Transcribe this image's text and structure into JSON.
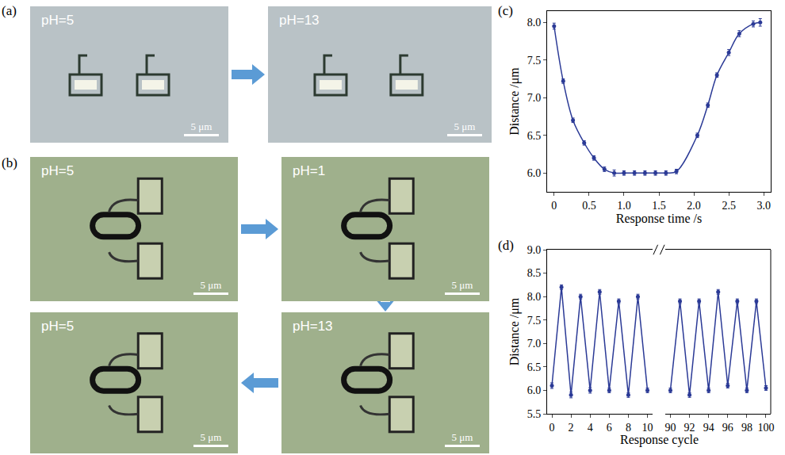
{
  "panels": [
    {
      "letter": "(a)",
      "images": [
        {
          "label": "pH=5",
          "scale": "5 μm"
        },
        {
          "label": "pH=13",
          "scale": "5 μm"
        }
      ]
    },
    {
      "letter": "(b)",
      "images": [
        {
          "label": "pH=5",
          "scale": "5 μm"
        },
        {
          "label": "pH=1",
          "scale": "5 μm"
        },
        {
          "label": "pH=5",
          "scale": "5 μm"
        },
        {
          "label": "pH=13",
          "scale": "5 μm"
        }
      ]
    }
  ],
  "chart_data": [
    {
      "letter": "(c)",
      "type": "line",
      "line_style": "solid",
      "marker": "circle",
      "color": "#2b3a96",
      "xlabel": "Response time /s",
      "ylabel": "Distance /μm",
      "x": [
        0,
        0.13,
        0.27,
        0.43,
        0.57,
        0.72,
        0.86,
        1.0,
        1.15,
        1.3,
        1.45,
        1.6,
        1.75,
        2.05,
        2.2,
        2.33,
        2.5,
        2.65,
        2.85,
        2.95
      ],
      "values": [
        7.95,
        7.22,
        6.7,
        6.4,
        6.2,
        6.05,
        6.0,
        6.0,
        6.0,
        6.0,
        6.0,
        6.0,
        6.02,
        6.5,
        6.9,
        7.3,
        7.6,
        7.85,
        7.98,
        8.0
      ],
      "errors": [
        0.04,
        0.03,
        0.03,
        0.03,
        0.03,
        0.03,
        0.04,
        0.03,
        0.03,
        0.03,
        0.03,
        0.03,
        0.03,
        0.03,
        0.03,
        0.03,
        0.04,
        0.04,
        0.04,
        0.05
      ],
      "xlim": [
        -0.1,
        3.1
      ],
      "ylim": [
        5.75,
        8.15
      ],
      "xticks": [
        0,
        0.5,
        {
          "value": 1,
          "label": "1.0"
        },
        1.5,
        {
          "value": 2,
          "label": "2.0"
        },
        2.5,
        {
          "value": 3,
          "label": "3.0"
        }
      ],
      "yticks": [
        {
          "value": 6,
          "label": "6.0"
        },
        6.5,
        {
          "value": 7,
          "label": "7.0"
        },
        7.5,
        {
          "value": 8,
          "label": "8.0"
        }
      ]
    },
    {
      "letter": "(d)",
      "type": "line",
      "line_style": "solid",
      "marker": "circle",
      "color": "#2b3a96",
      "xlabel": "Response cycle",
      "ylabel": "Distance /μm",
      "x": [
        0,
        1,
        2,
        3,
        4,
        5,
        6,
        7,
        8,
        9,
        10,
        90,
        91,
        92,
        93,
        94,
        95,
        96,
        97,
        98,
        99,
        100
      ],
      "values": [
        6.1,
        8.2,
        5.9,
        8.0,
        6.0,
        8.1,
        6.0,
        7.9,
        5.9,
        8.0,
        6.0,
        6.0,
        7.9,
        5.9,
        7.9,
        6.0,
        8.1,
        6.1,
        7.9,
        6.0,
        7.9,
        6.05
      ],
      "errors": [
        0.06,
        0.05,
        0.06,
        0.05,
        0.06,
        0.05,
        0.05,
        0.05,
        0.05,
        0.05,
        0.05,
        0.05,
        0.05,
        0.05,
        0.05,
        0.05,
        0.05,
        0.05,
        0.05,
        0.05,
        0.05,
        0.05
      ],
      "xlim": [
        [
          -0.5,
          10.5
        ],
        [
          89.5,
          100.5
        ]
      ],
      "xticks": [
        [
          0,
          2,
          4,
          6,
          8,
          10
        ],
        [
          90,
          92,
          94,
          96,
          98,
          100
        ]
      ],
      "ylim": [
        5.5,
        9.0
      ],
      "yticks": [
        {
          "value": 5.5,
          "label": "5.5"
        },
        {
          "value": 6,
          "label": "6.0"
        },
        6.5,
        {
          "value": 7,
          "label": "7.0"
        },
        7.5,
        {
          "value": 8,
          "label": "8.0"
        },
        8.5,
        {
          "value": 9,
          "label": "9.0"
        }
      ]
    }
  ]
}
